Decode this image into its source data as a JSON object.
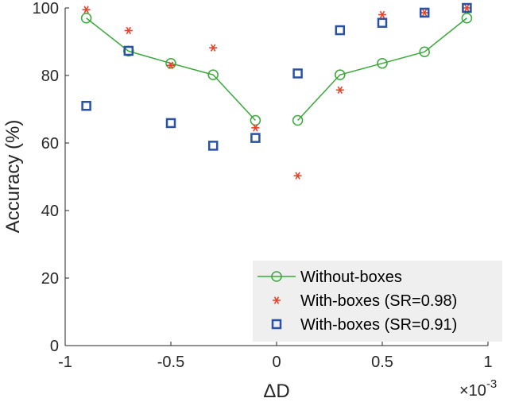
{
  "chart_data": {
    "type": "scatter",
    "xlabel": "ΔD",
    "ylabel": "Accuracy (%)",
    "x_multiplier_base": "×10",
    "x_multiplier_exp": "-3",
    "xlim": [
      -1,
      1
    ],
    "ylim": [
      0,
      100
    ],
    "xticks": [
      -1,
      -0.5,
      0,
      0.5,
      1
    ],
    "xtick_labels": [
      "-1",
      "-0.5",
      "0",
      "0.5",
      "1"
    ],
    "yticks": [
      0,
      20,
      40,
      60,
      80,
      100
    ],
    "ytick_labels": [
      "0",
      "20",
      "40",
      "60",
      "80",
      "100"
    ],
    "legend_position": "bottom-right",
    "series": [
      {
        "name": "Without-boxes",
        "marker": "circle",
        "line": true,
        "color": "#3AA83A",
        "segments": [
          {
            "x": [
              -0.9,
              -0.7,
              -0.5,
              -0.3,
              -0.1
            ],
            "y": [
              97,
              87.2,
              83.6,
              80.2,
              66.7
            ]
          },
          {
            "x": [
              0.1,
              0.3,
              0.5,
              0.7,
              0.9
            ],
            "y": [
              66.7,
              80.2,
              83.6,
              87,
              97
            ]
          }
        ]
      },
      {
        "name": "With-boxes (SR=0.98)",
        "marker": "asterisk",
        "line": false,
        "color": "#E8432A",
        "x": [
          -0.9,
          -0.7,
          -0.5,
          -0.3,
          -0.1,
          0.1,
          0.3,
          0.5,
          0.7,
          0.9
        ],
        "y": [
          99.5,
          93.3,
          83,
          88.2,
          64.5,
          50.3,
          75.7,
          98,
          98.6,
          100
        ]
      },
      {
        "name": "With-boxes (SR=0.91)",
        "marker": "square",
        "line": false,
        "color": "#2952A3",
        "x": [
          -0.9,
          -0.7,
          -0.5,
          -0.3,
          -0.1,
          0.1,
          0.3,
          0.5,
          0.7,
          0.9
        ],
        "y": [
          71,
          87.3,
          65.9,
          59.2,
          61.5,
          80.6,
          93.4,
          95.6,
          98.6,
          100
        ]
      }
    ]
  }
}
